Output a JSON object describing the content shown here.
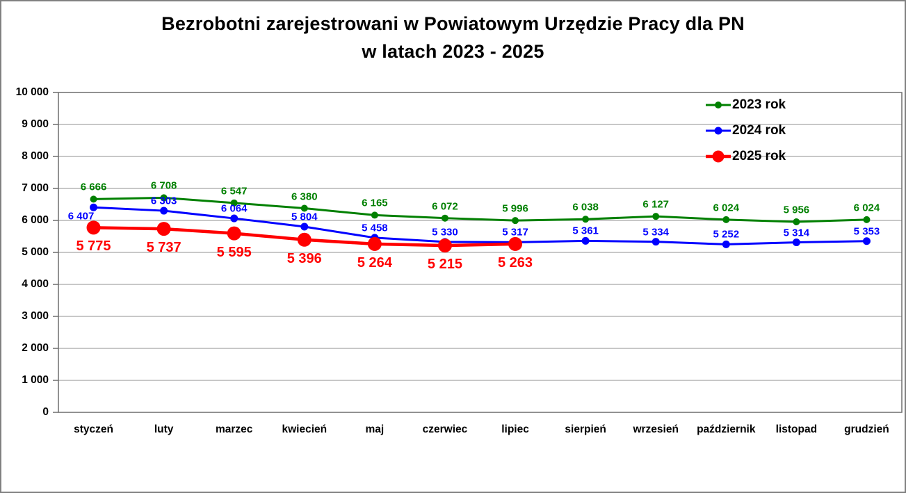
{
  "chart_data": {
    "type": "line",
    "title": "Bezrobotni zarejestrowani w Powiatowym Urzędzie Pracy dla PN w latach 2023 - 2025",
    "title_lines": [
      "Bezrobotni zarejestrowani w Powiatowym Urzędzie Pracy dla PN",
      "w latach 2023 - 2025"
    ],
    "categories": [
      "styczeń",
      "luty",
      "marzec",
      "kwiecień",
      "maj",
      "czerwiec",
      "lipiec",
      "sierpień",
      "wrzesień",
      "październik",
      "listopad",
      "grudzień"
    ],
    "series": [
      {
        "name": "2023 rok",
        "color": "#008000",
        "values": [
          6666,
          6708,
          6547,
          6380,
          6165,
          6072,
          5996,
          6038,
          6127,
          6024,
          5956,
          6024
        ]
      },
      {
        "name": "2024 rok",
        "color": "#0000ff",
        "values": [
          6407,
          6303,
          6064,
          5804,
          5458,
          5330,
          5317,
          5361,
          5334,
          5252,
          5314,
          5353
        ]
      },
      {
        "name": "2025 rok",
        "color": "#ff0000",
        "values": [
          5775,
          5737,
          5595,
          5396,
          5264,
          5215,
          5263
        ]
      }
    ],
    "ylim": [
      0,
      10000
    ],
    "ytick_step": 1000,
    "grid": true,
    "legend_position": "top-right",
    "number_format": "space-thousands",
    "colors": {
      "grid": "#a6a6a6",
      "plot_border": "#6e6e6e",
      "outer_border": "#808080",
      "text": "#000000"
    }
  }
}
